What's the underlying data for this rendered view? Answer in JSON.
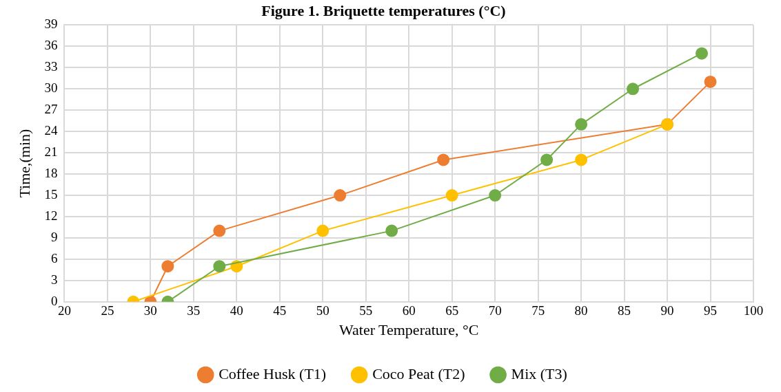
{
  "chart_data": {
    "type": "line",
    "title": "Figure 1. Briquette temperatures (°C)",
    "xlabel": "Water Temperature, °C",
    "ylabel": "Time,(min)",
    "xlim": [
      20,
      100
    ],
    "xticks": [
      20,
      25,
      30,
      35,
      40,
      45,
      50,
      55,
      60,
      65,
      70,
      75,
      80,
      85,
      90,
      95,
      100
    ],
    "ylim": [
      0,
      39
    ],
    "yticks": [
      0,
      3,
      6,
      9,
      12,
      15,
      18,
      21,
      24,
      27,
      30,
      33,
      36,
      39
    ],
    "grid": true,
    "legend": "bottom",
    "marker": "circle",
    "line_style": "solid",
    "series": [
      {
        "name": "Coffee Husk (T1)",
        "color": "#ed7d31",
        "x": [
          30,
          32,
          38,
          52,
          64,
          90,
          95
        ],
        "values": [
          0,
          5,
          10,
          15,
          20,
          25,
          31
        ]
      },
      {
        "name": "Coco Peat (T2)",
        "color": "#ffc000",
        "x": [
          28,
          40,
          50,
          65,
          80,
          90
        ],
        "values": [
          0,
          5,
          10,
          15,
          20,
          25
        ]
      },
      {
        "name": "Mix (T3)",
        "color": "#70ad47",
        "x": [
          32,
          38,
          58,
          70,
          76,
          80,
          86,
          94
        ],
        "values": [
          0,
          5,
          10,
          15,
          20,
          25,
          30,
          35
        ]
      }
    ]
  }
}
